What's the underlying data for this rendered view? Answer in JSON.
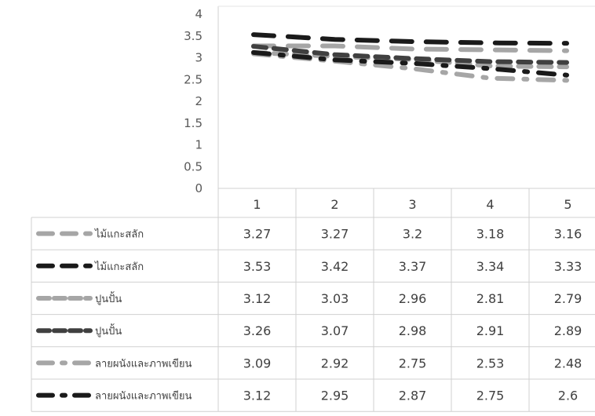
{
  "chart_data": {
    "type": "line",
    "title": "",
    "xlabel": "",
    "ylabel": "",
    "ylim": [
      0,
      4
    ],
    "y_ticks": [
      "0",
      "0.5",
      "1",
      "1.5",
      "2",
      "2.5",
      "3",
      "3.5",
      "4"
    ],
    "categories": [
      "1",
      "2",
      "3",
      "4",
      "5"
    ],
    "grid": false,
    "legend_placement": "data-table-below",
    "series": [
      {
        "name": "ไม้แกะสลัก",
        "values": [
          3.27,
          3.27,
          3.2,
          3.18,
          3.16
        ],
        "labels": [
          "3.27",
          "3.27",
          "3.2",
          "3.18",
          "3.16"
        ],
        "color": "#a6a6a6",
        "dash": "long-dash"
      },
      {
        "name": "ไม้แกะสลัก",
        "values": [
          3.53,
          3.42,
          3.37,
          3.34,
          3.33
        ],
        "labels": [
          "3.53",
          "3.42",
          "3.37",
          "3.34",
          "3.33"
        ],
        "color": "#1a1a1a",
        "dash": "long-dash"
      },
      {
        "name": "ปูนปั้น",
        "values": [
          3.12,
          3.03,
          2.96,
          2.81,
          2.79
        ],
        "labels": [
          "3.12",
          "3.03",
          "2.96",
          "2.81",
          "2.79"
        ],
        "color": "#a6a6a6",
        "dash": "dash"
      },
      {
        "name": "ปูนปั้น",
        "values": [
          3.26,
          3.07,
          2.98,
          2.91,
          2.89
        ],
        "labels": [
          "3.26",
          "3.07",
          "2.98",
          "2.91",
          "2.89"
        ],
        "color": "#404040",
        "dash": "dash"
      },
      {
        "name": "ลายผนังและภาพเขียน",
        "values": [
          3.09,
          2.92,
          2.75,
          2.53,
          2.48
        ],
        "labels": [
          "3.09",
          "2.92",
          "2.75",
          "2.53",
          "2.48"
        ],
        "color": "#a6a6a6",
        "dash": "dash-dot"
      },
      {
        "name": "ลายผนังและภาพเขียน",
        "values": [
          3.12,
          2.95,
          2.87,
          2.75,
          2.6
        ],
        "labels": [
          "3.12",
          "2.95",
          "2.87",
          "2.75",
          "2.6"
        ],
        "color": "#1a1a1a",
        "dash": "dash-dot"
      }
    ]
  }
}
